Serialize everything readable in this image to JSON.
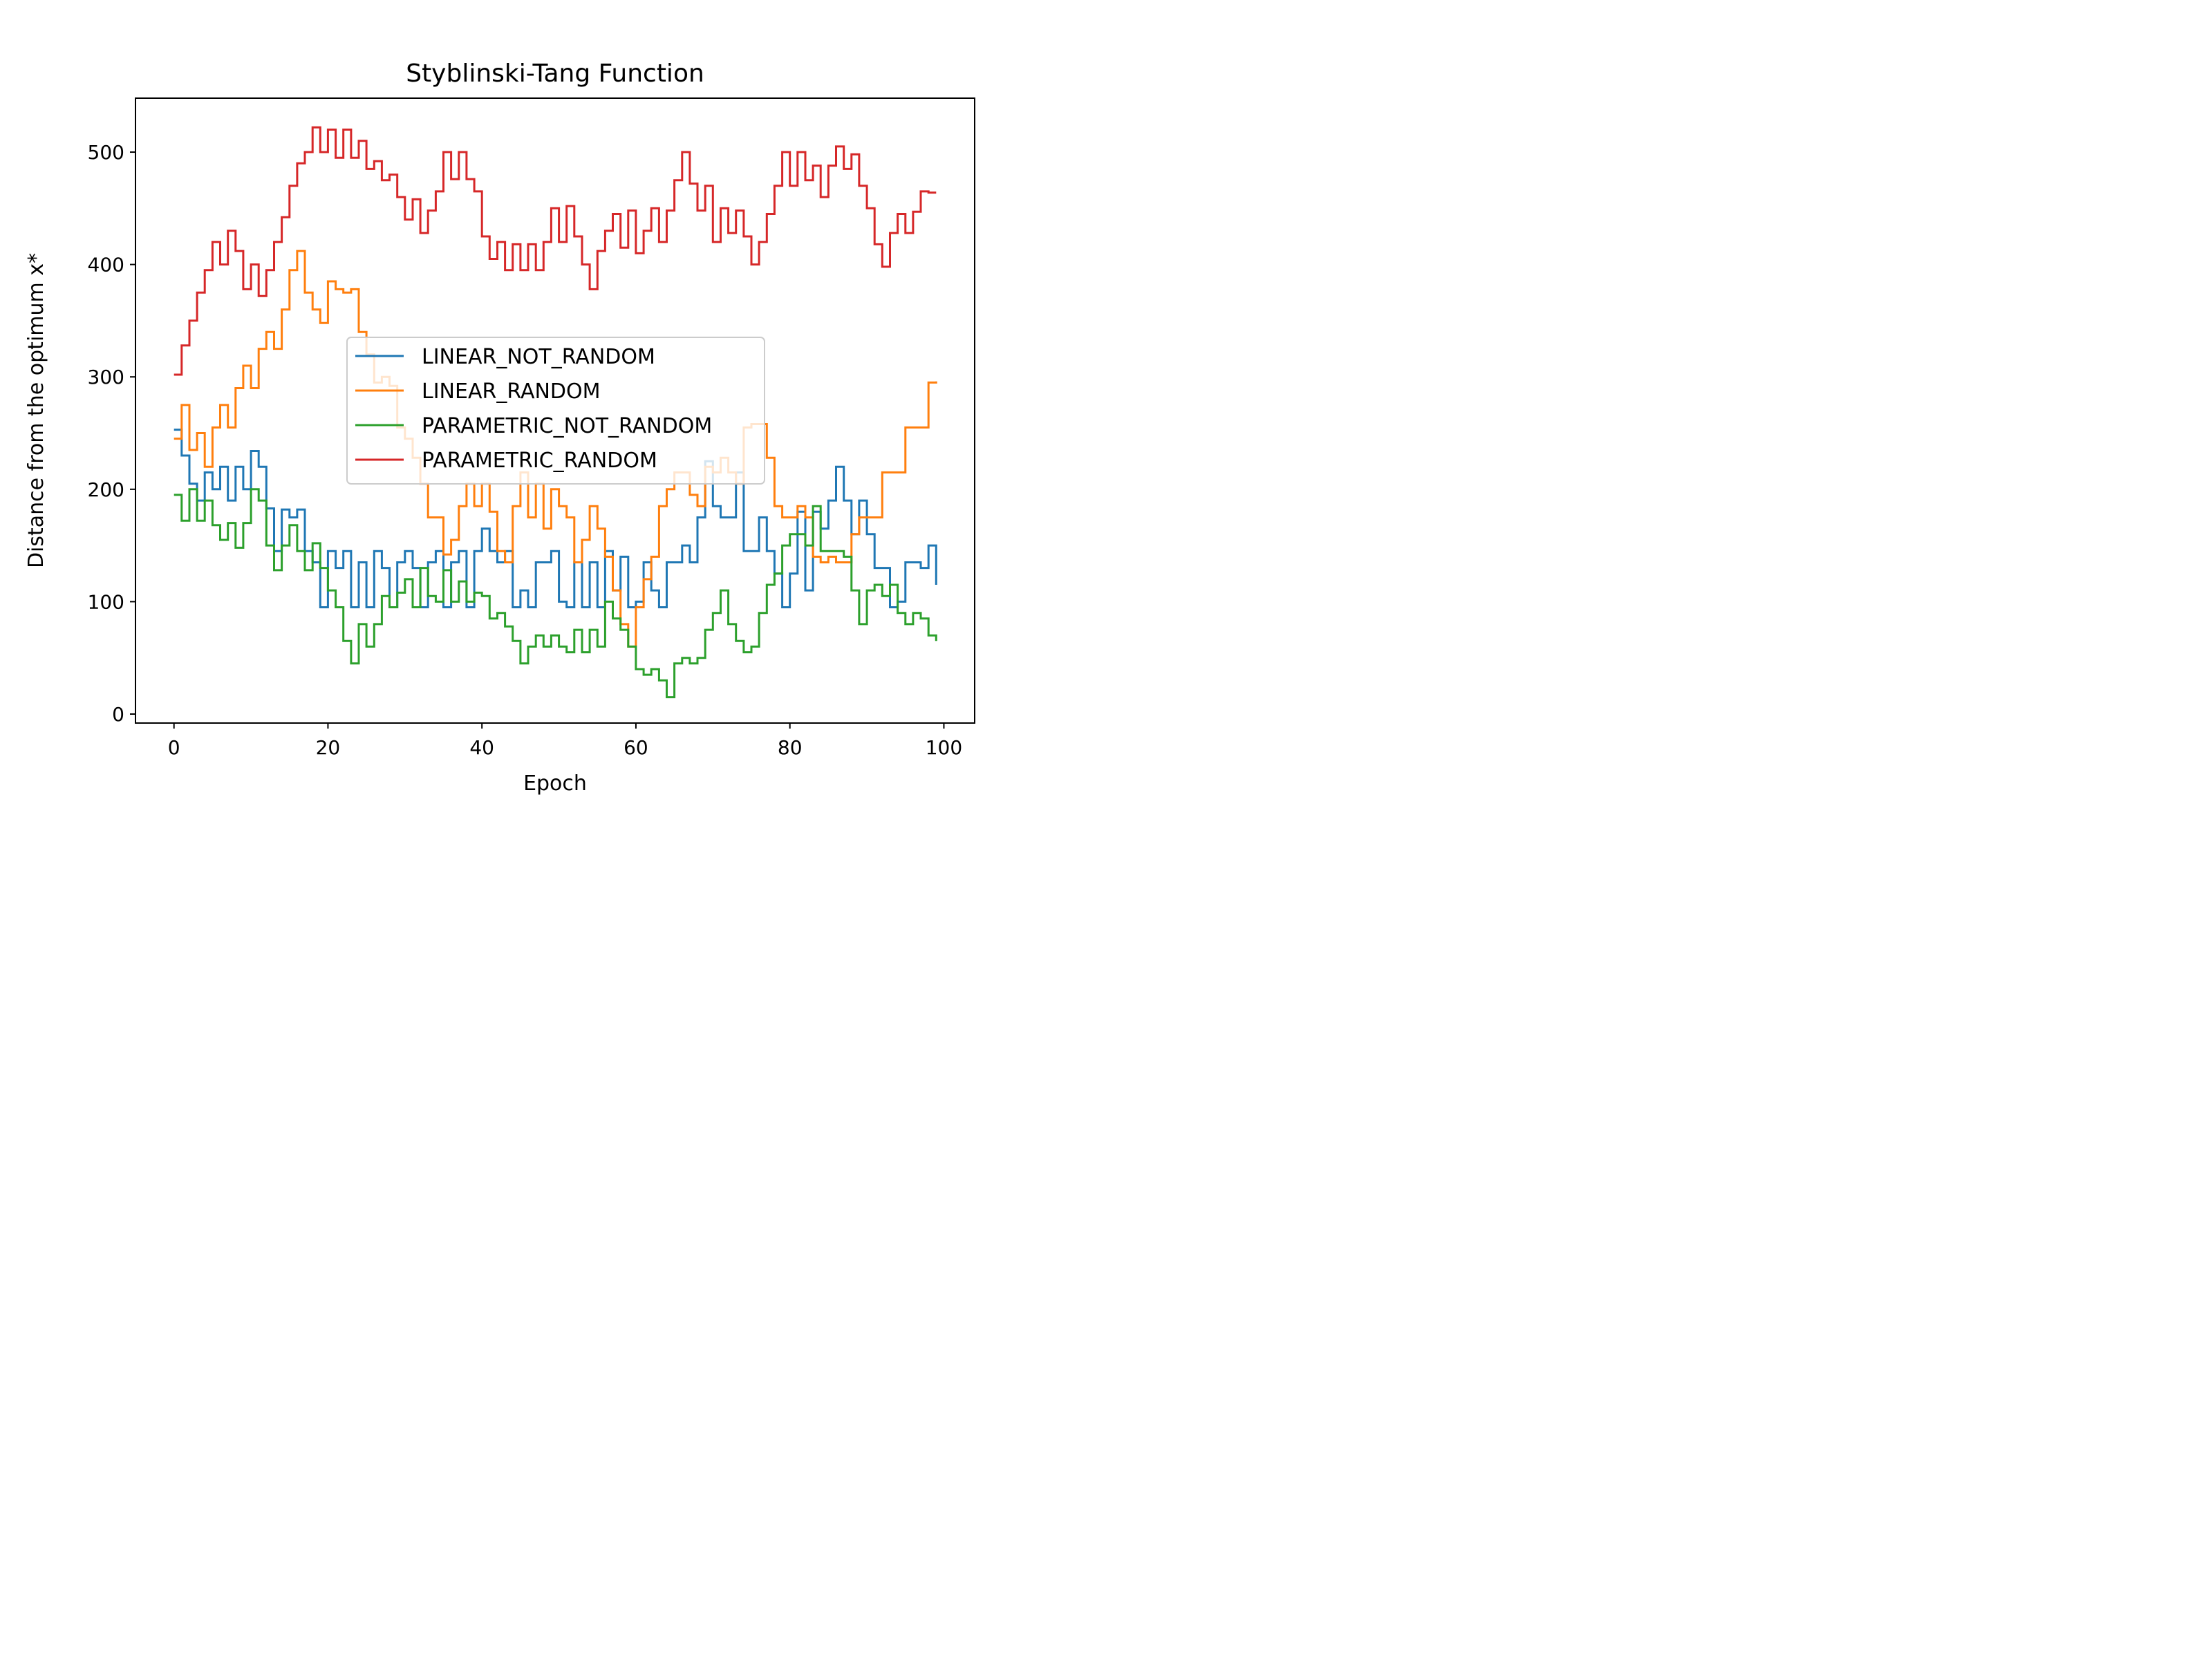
{
  "chart_data": {
    "type": "line",
    "title": "Styblinski-Tang Function",
    "xlabel": "Epoch",
    "ylabel": "Distance from the optimum x*",
    "xlim": [
      -5,
      104
    ],
    "ylim": [
      -8,
      548
    ],
    "xticks": [
      0,
      20,
      40,
      60,
      80,
      100
    ],
    "yticks": [
      0,
      100,
      200,
      300,
      400,
      500
    ],
    "grid": false,
    "legend_position": "center",
    "step": "post",
    "x": [
      0,
      1,
      2,
      3,
      4,
      5,
      6,
      7,
      8,
      9,
      10,
      11,
      12,
      13,
      14,
      15,
      16,
      17,
      18,
      19,
      20,
      21,
      22,
      23,
      24,
      25,
      26,
      27,
      28,
      29,
      30,
      31,
      32,
      33,
      34,
      35,
      36,
      37,
      38,
      39,
      40,
      41,
      42,
      43,
      44,
      45,
      46,
      47,
      48,
      49,
      50,
      51,
      52,
      53,
      54,
      55,
      56,
      57,
      58,
      59,
      60,
      61,
      62,
      63,
      64,
      65,
      66,
      67,
      68,
      69,
      70,
      71,
      72,
      73,
      74,
      75,
      76,
      77,
      78,
      79,
      80,
      81,
      82,
      83,
      84,
      85,
      86,
      87,
      88,
      89,
      90,
      91,
      92,
      93,
      94,
      95,
      96,
      97,
      98,
      99
    ],
    "series": [
      {
        "name": "LINEAR_NOT_RANDOM",
        "color": "#1f77b4",
        "values": [
          253,
          230,
          205,
          190,
          215,
          200,
          220,
          190,
          220,
          200,
          234,
          220,
          183,
          145,
          182,
          175,
          182,
          145,
          135,
          95,
          145,
          130,
          145,
          95,
          135,
          95,
          145,
          130,
          95,
          135,
          145,
          130,
          95,
          135,
          145,
          95,
          135,
          145,
          95,
          145,
          165,
          145,
          135,
          145,
          95,
          110,
          95,
          135,
          135,
          145,
          100,
          95,
          135,
          95,
          135,
          95,
          145,
          110,
          140,
          95,
          100,
          135,
          110,
          95,
          135,
          135,
          150,
          135,
          175,
          225,
          185,
          175,
          175,
          215,
          145,
          145,
          175,
          145,
          125,
          95,
          125,
          180,
          110,
          180,
          165,
          190,
          220,
          190,
          160,
          190,
          160,
          130,
          130,
          95,
          100,
          135,
          135,
          130,
          150,
          115
        ]
      },
      {
        "name": "LINEAR_RANDOM",
        "color": "#ff7f0e",
        "values": [
          245,
          275,
          235,
          250,
          220,
          255,
          275,
          255,
          290,
          310,
          290,
          325,
          340,
          325,
          360,
          395,
          412,
          375,
          360,
          348,
          385,
          378,
          375,
          378,
          340,
          320,
          295,
          300,
          292,
          255,
          245,
          228,
          205,
          175,
          175,
          142,
          155,
          185,
          205,
          185,
          205,
          180,
          145,
          135,
          185,
          215,
          175,
          205,
          165,
          200,
          185,
          175,
          135,
          155,
          185,
          165,
          140,
          110,
          80,
          60,
          95,
          120,
          140,
          185,
          200,
          215,
          215,
          195,
          185,
          220,
          215,
          228,
          215,
          205,
          255,
          258,
          258,
          228,
          185,
          175,
          175,
          185,
          175,
          140,
          135,
          140,
          135,
          135,
          160,
          175,
          175,
          175,
          215,
          215,
          215,
          255,
          255,
          255,
          295,
          296
        ]
      },
      {
        "name": "PARAMETRIC_NOT_RANDOM",
        "color": "#2ca02c",
        "values": [
          195,
          172,
          200,
          172,
          190,
          168,
          155,
          170,
          148,
          170,
          200,
          190,
          150,
          128,
          150,
          168,
          145,
          128,
          152,
          130,
          110,
          95,
          65,
          45,
          80,
          60,
          80,
          105,
          95,
          108,
          120,
          95,
          130,
          105,
          100,
          128,
          100,
          118,
          100,
          108,
          105,
          85,
          90,
          78,
          65,
          45,
          60,
          70,
          60,
          70,
          60,
          55,
          75,
          55,
          75,
          60,
          100,
          85,
          75,
          60,
          40,
          35,
          40,
          30,
          15,
          45,
          50,
          45,
          50,
          75,
          90,
          110,
          80,
          65,
          55,
          60,
          90,
          115,
          125,
          150,
          160,
          160,
          150,
          185,
          145,
          145,
          145,
          140,
          110,
          80,
          110,
          115,
          105,
          115,
          90,
          80,
          90,
          85,
          70,
          65
        ]
      },
      {
        "name": "PARAMETRIC_RANDOM",
        "color": "#d62728",
        "values": [
          302,
          328,
          350,
          375,
          395,
          420,
          400,
          430,
          412,
          378,
          400,
          372,
          395,
          420,
          442,
          470,
          490,
          500,
          522,
          500,
          520,
          495,
          520,
          495,
          510,
          485,
          492,
          475,
          480,
          460,
          440,
          458,
          428,
          448,
          465,
          500,
          476,
          500,
          476,
          465,
          425,
          405,
          420,
          395,
          418,
          395,
          418,
          395,
          420,
          450,
          420,
          452,
          425,
          400,
          378,
          412,
          430,
          445,
          415,
          448,
          410,
          430,
          450,
          420,
          448,
          475,
          500,
          472,
          448,
          470,
          420,
          450,
          428,
          448,
          425,
          400,
          420,
          445,
          470,
          500,
          470,
          500,
          475,
          488,
          460,
          488,
          505,
          485,
          498,
          470,
          450,
          418,
          398,
          428,
          445,
          428,
          447,
          465,
          464,
          464
        ]
      }
    ]
  }
}
